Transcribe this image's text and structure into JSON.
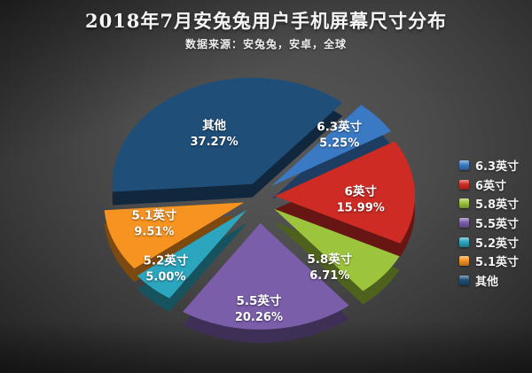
{
  "chart_data": {
    "type": "pie",
    "style": "3d-exploded-pie",
    "title": "2018年7月安兔兔用户手机屏幕尺寸分布",
    "subtitle": "数据来源：安兔兔，安卓，全球",
    "legend_position": "right",
    "label_format": "name + percent",
    "start_angle_clockwise_from_top_deg": 40,
    "total_percent": 99.99,
    "series": [
      {
        "name": "6.3英寸",
        "value": 5.25,
        "display_value": "5.25%",
        "color": "#3a7ac4"
      },
      {
        "name": "6英寸",
        "value": 15.99,
        "display_value": "15.99%",
        "color": "#ce2b25"
      },
      {
        "name": "5.8英寸",
        "value": 6.71,
        "display_value": "6.71%",
        "color": "#9cc43c"
      },
      {
        "name": "5.5英寸",
        "value": 20.26,
        "display_value": "20.26%",
        "color": "#7a5ea9"
      },
      {
        "name": "5.2英寸",
        "value": 5.0,
        "display_value": "5.00%",
        "color": "#2ba6be"
      },
      {
        "name": "5.1英寸",
        "value": 9.51,
        "display_value": "9.51%",
        "color": "#f79421"
      },
      {
        "name": "其他",
        "value": 37.27,
        "display_value": "37.27%",
        "color": "#1f4e79"
      }
    ]
  }
}
